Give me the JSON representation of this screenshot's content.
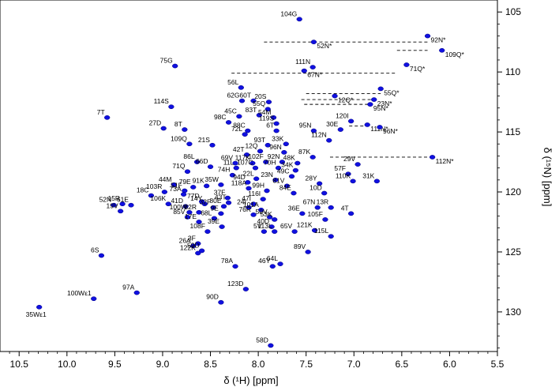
{
  "chart_data": {
    "type": "scatter",
    "title": "",
    "xlabel": "δ (¹H) [ppm]",
    "ylabel": "δ (¹⁵N) [ppm]",
    "xlim": [
      10.7,
      5.5
    ],
    "ylim": [
      104,
      133.3
    ],
    "x_reversed": true,
    "y_reversed": true,
    "grid": false,
    "peak_color": "#1010e0",
    "xticks": [
      "10.5",
      "10.0",
      "9.5",
      "9.0",
      "8.5",
      "8.0",
      "7.5",
      "7.0",
      "6.5",
      "6.0",
      "5.5"
    ],
    "yticks": [
      "105",
      "110",
      "115",
      "120",
      "125",
      "130"
    ],
    "peaks": [
      {
        "label": "104G",
        "x": 7.57,
        "y": 105.6
      },
      {
        "label": "92N*",
        "x": 6.23,
        "y": 107.0
      },
      {
        "label": "52N*",
        "x": 7.42,
        "y": 107.5
      },
      {
        "label": "109Q*",
        "x": 6.08,
        "y": 108.2
      },
      {
        "label": "75G",
        "x": 8.87,
        "y": 109.5
      },
      {
        "label": "111N",
        "x": 7.43,
        "y": 109.6
      },
      {
        "label": "71Q*",
        "x": 6.45,
        "y": 109.4
      },
      {
        "label": "67N*",
        "x": 7.52,
        "y": 109.9
      },
      {
        "label": "56L",
        "x": 8.18,
        "y": 111.3
      },
      {
        "label": "55Q*",
        "x": 6.72,
        "y": 111.4
      },
      {
        "label": "12Q*",
        "x": 7.2,
        "y": 112.0
      },
      {
        "label": "23N*",
        "x": 6.79,
        "y": 112.3
      },
      {
        "label": "62G",
        "x": 8.17,
        "y": 112.4
      },
      {
        "label": "60T",
        "x": 8.05,
        "y": 112.4
      },
      {
        "label": "20S",
        "x": 7.89,
        "y": 112.5
      },
      {
        "label": "114S",
        "x": 8.91,
        "y": 112.9
      },
      {
        "label": "55Q",
        "x": 7.9,
        "y": 113.1
      },
      {
        "label": "95N*",
        "x": 6.83,
        "y": 112.7
      },
      {
        "label": "45C",
        "x": 8.2,
        "y": 113.7
      },
      {
        "label": "83T",
        "x": 7.99,
        "y": 113.6
      },
      {
        "label": "54M",
        "x": 7.84,
        "y": 113.8
      },
      {
        "label": "119S",
        "x": 7.81,
        "y": 114.3
      },
      {
        "label": "120I",
        "x": 7.03,
        "y": 114.1
      },
      {
        "label": "98C",
        "x": 8.31,
        "y": 114.2
      },
      {
        "label": "7T",
        "x": 9.58,
        "y": 113.8
      },
      {
        "label": "111N*",
        "x": 6.86,
        "y": 114.4
      },
      {
        "label": "27D",
        "x": 8.99,
        "y": 114.7
      },
      {
        "label": "8T",
        "x": 8.77,
        "y": 114.8
      },
      {
        "label": "88C",
        "x": 8.11,
        "y": 114.9
      },
      {
        "label": "6T",
        "x": 7.81,
        "y": 114.9
      },
      {
        "label": "30E",
        "x": 7.14,
        "y": 114.8
      },
      {
        "label": "95N",
        "x": 7.42,
        "y": 114.9
      },
      {
        "label": "72L",
        "x": 8.14,
        "y": 115.2
      },
      {
        "label": "96N*",
        "x": 6.73,
        "y": 114.6
      },
      {
        "label": "109Q",
        "x": 8.72,
        "y": 116.0
      },
      {
        "label": "21S",
        "x": 8.48,
        "y": 116.1
      },
      {
        "label": "93T",
        "x": 7.9,
        "y": 116.1
      },
      {
        "label": "33K",
        "x": 7.71,
        "y": 116.0
      },
      {
        "label": "112N",
        "x": 7.26,
        "y": 115.7
      },
      {
        "label": "12Q",
        "x": 7.98,
        "y": 116.6
      },
      {
        "label": "42T",
        "x": 8.12,
        "y": 116.9
      },
      {
        "label": "96N",
        "x": 7.73,
        "y": 116.7
      },
      {
        "label": "87K",
        "x": 7.43,
        "y": 117.1
      },
      {
        "label": "112N*",
        "x": 6.18,
        "y": 117.1
      },
      {
        "label": "86L",
        "x": 8.64,
        "y": 117.5
      },
      {
        "label": "69V",
        "x": 8.24,
        "y": 117.6
      },
      {
        "label": "117K",
        "x": 8.06,
        "y": 117.6
      },
      {
        "label": "102F",
        "x": 7.92,
        "y": 117.5
      },
      {
        "label": "92N",
        "x": 7.75,
        "y": 117.5
      },
      {
        "label": "48K",
        "x": 7.59,
        "y": 117.6
      },
      {
        "label": "29V",
        "x": 6.96,
        "y": 117.7
      },
      {
        "label": "66D",
        "x": 8.5,
        "y": 117.9
      },
      {
        "label": "11L",
        "x": 8.23,
        "y": 118.0
      },
      {
        "label": "107C",
        "x": 8.03,
        "y": 118.0
      },
      {
        "label": "70H",
        "x": 7.79,
        "y": 118.0
      },
      {
        "label": "71Q",
        "x": 8.74,
        "y": 118.3
      },
      {
        "label": "34K",
        "x": 7.61,
        "y": 118.2
      },
      {
        "label": "74H",
        "x": 8.27,
        "y": 118.6
      },
      {
        "label": "57F",
        "x": 7.06,
        "y": 118.5
      },
      {
        "label": "49C",
        "x": 7.65,
        "y": 118.7
      },
      {
        "label": "22L",
        "x": 8.02,
        "y": 118.9
      },
      {
        "label": "23N",
        "x": 7.82,
        "y": 119.0
      },
      {
        "label": "31K",
        "x": 6.76,
        "y": 119.1
      },
      {
        "label": "110K",
        "x": 7.01,
        "y": 119.1
      },
      {
        "label": "94D",
        "x": 8.11,
        "y": 119.2
      },
      {
        "label": "35W",
        "x": 8.39,
        "y": 119.4
      },
      {
        "label": "28Y",
        "x": 7.36,
        "y": 119.3
      },
      {
        "label": "44M",
        "x": 8.88,
        "y": 119.4
      },
      {
        "label": "51F",
        "x": 8.77,
        "y": 119.9
      },
      {
        "label": "91K",
        "x": 8.54,
        "y": 119.5
      },
      {
        "label": "81V",
        "x": 7.7,
        "y": 119.5
      },
      {
        "label": "118A",
        "x": 8.1,
        "y": 119.7
      },
      {
        "label": "99H",
        "x": 7.91,
        "y": 119.9
      },
      {
        "label": "79E",
        "x": 8.68,
        "y": 119.6
      },
      {
        "label": "103R",
        "x": 8.98,
        "y": 120.0
      },
      {
        "label": "18C",
        "x": 9.12,
        "y": 120.3
      },
      {
        "label": "84E",
        "x": 7.63,
        "y": 120.1
      },
      {
        "label": "73A",
        "x": 8.78,
        "y": 120.2
      },
      {
        "label": "37F",
        "x": 8.32,
        "y": 120.5
      },
      {
        "label": "10D",
        "x": 7.31,
        "y": 120.1
      },
      {
        "label": "116I",
        "x": 7.95,
        "y": 120.6
      },
      {
        "label": "77D",
        "x": 8.59,
        "y": 120.8
      },
      {
        "label": "43T",
        "x": 8.31,
        "y": 120.9
      },
      {
        "label": "14Y",
        "x": 8.56,
        "y": 121.0
      },
      {
        "label": "106K",
        "x": 8.94,
        "y": 121.0
      },
      {
        "label": "47I",
        "x": 8.05,
        "y": 121.0
      },
      {
        "label": "80E",
        "x": 8.36,
        "y": 121.2
      },
      {
        "label": "41D",
        "x": 8.76,
        "y": 121.2
      },
      {
        "label": "32F",
        "x": 8.47,
        "y": 121.3
      },
      {
        "label": "24I",
        "x": 8.1,
        "y": 121.3
      },
      {
        "label": "67N",
        "x": 7.38,
        "y": 121.3
      },
      {
        "label": "13R",
        "x": 7.24,
        "y": 121.3
      },
      {
        "label": "15R",
        "x": 9.42,
        "y": 121.0
      },
      {
        "label": "52N",
        "x": 9.51,
        "y": 121.1
      },
      {
        "label": "61E",
        "x": 9.33,
        "y": 121.1
      },
      {
        "label": "101A",
        "x": 7.97,
        "y": 121.5
      },
      {
        "label": "100W",
        "x": 8.72,
        "y": 121.7
      },
      {
        "label": "82R",
        "x": 8.62,
        "y": 121.7
      },
      {
        "label": "9E",
        "x": 8.39,
        "y": 121.8
      },
      {
        "label": "36E",
        "x": 7.54,
        "y": 121.8
      },
      {
        "label": "4T",
        "x": 7.03,
        "y": 121.8
      },
      {
        "label": "19V",
        "x": 9.44,
        "y": 121.6
      },
      {
        "label": "85V",
        "x": 8.74,
        "y": 122.1
      },
      {
        "label": "50V",
        "x": 7.88,
        "y": 122.1
      },
      {
        "label": "53K",
        "x": 7.83,
        "y": 122.3
      },
      {
        "label": "68L",
        "x": 8.46,
        "y": 122.2
      },
      {
        "label": "76R",
        "x": 8.05,
        "y": 121.9
      },
      {
        "label": "105F",
        "x": 7.3,
        "y": 122.3
      },
      {
        "label": "17E",
        "x": 8.62,
        "y": 122.5
      },
      {
        "label": "40D",
        "x": 7.86,
        "y": 122.9
      },
      {
        "label": "39E",
        "x": 8.38,
        "y": 122.9
      },
      {
        "label": "121K",
        "x": 7.41,
        "y": 123.2
      },
      {
        "label": "5V",
        "x": 7.94,
        "y": 123.3
      },
      {
        "label": "113L",
        "x": 7.83,
        "y": 123.3
      },
      {
        "label": "65V",
        "x": 7.62,
        "y": 123.3
      },
      {
        "label": "108F",
        "x": 8.53,
        "y": 123.3
      },
      {
        "label": "115L",
        "x": 7.24,
        "y": 123.7
      },
      {
        "label": "3F",
        "x": 8.63,
        "y": 124.3
      },
      {
        "label": "26A",
        "x": 8.68,
        "y": 124.5
      },
      {
        "label": "59D",
        "x": 8.59,
        "y": 124.9
      },
      {
        "label": "89V",
        "x": 7.48,
        "y": 125.0
      },
      {
        "label": "6S",
        "x": 9.64,
        "y": 125.3
      },
      {
        "label": "122K",
        "x": 8.63,
        "y": 125.1
      },
      {
        "label": "78A",
        "x": 8.24,
        "y": 126.2
      },
      {
        "label": "46Y",
        "x": 7.85,
        "y": 126.2
      },
      {
        "label": "64L",
        "x": 7.77,
        "y": 126.0
      },
      {
        "label": "97A",
        "x": 9.27,
        "y": 128.4
      },
      {
        "label": "123D",
        "x": 8.13,
        "y": 128.1
      },
      {
        "label": "100Wε1",
        "x": 9.72,
        "y": 128.9
      },
      {
        "label": "90D",
        "x": 8.39,
        "y": 129.2
      },
      {
        "label": "35Wε1",
        "x": 10.29,
        "y": 129.6
      },
      {
        "label": "58D",
        "x": 7.87,
        "y": 132.8
      }
    ],
    "nh2_pairs": [
      {
        "x1": 7.94,
        "x2": 6.23,
        "y": 107.5
      },
      {
        "x1": 6.55,
        "x2": 6.23,
        "y": 108.2
      },
      {
        "x1": 8.28,
        "x2": 6.55,
        "y": 110.1
      },
      {
        "x1": 7.5,
        "x2": 6.72,
        "y": 111.8
      },
      {
        "x1": 7.55,
        "x2": 6.8,
        "y": 112.3
      },
      {
        "x1": 7.52,
        "x2": 6.83,
        "y": 112.7
      },
      {
        "x1": 7.05,
        "x2": 6.88,
        "y": 114.5
      },
      {
        "x1": 7.25,
        "x2": 6.16,
        "y": 117.1
      }
    ]
  }
}
